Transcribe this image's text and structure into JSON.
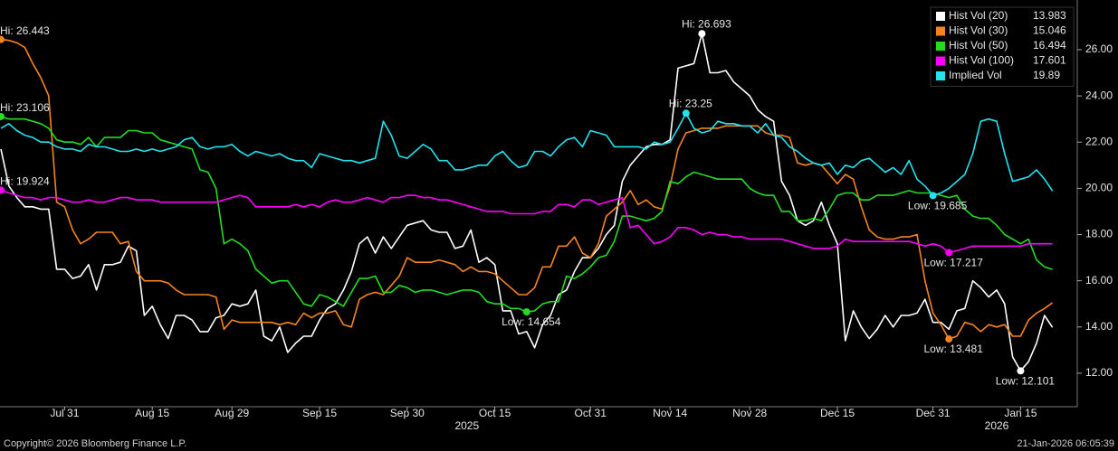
{
  "chart_data": {
    "type": "line",
    "categories": [
      null,
      null,
      null,
      null,
      null,
      null,
      null,
      null,
      "Jul 31",
      null,
      null,
      null,
      null,
      null,
      null,
      null,
      null,
      null,
      null,
      "Aug 15",
      null,
      null,
      null,
      null,
      null,
      null,
      null,
      null,
      null,
      "Aug 29",
      null,
      null,
      null,
      null,
      null,
      null,
      null,
      null,
      null,
      null,
      "Sep 15",
      null,
      null,
      null,
      null,
      null,
      null,
      null,
      null,
      null,
      null,
      "Sep 30",
      null,
      null,
      null,
      null,
      null,
      null,
      null,
      null,
      null,
      null,
      "Oct 15",
      null,
      null,
      null,
      null,
      null,
      null,
      null,
      null,
      null,
      null,
      null,
      "Oct 31",
      null,
      null,
      null,
      null,
      null,
      null,
      null,
      null,
      null,
      "Nov 14",
      null,
      null,
      null,
      null,
      null,
      null,
      null,
      null,
      null,
      "Nov 28",
      null,
      null,
      null,
      null,
      null,
      null,
      null,
      null,
      null,
      null,
      "Dec 15",
      null,
      null,
      null,
      null,
      null,
      null,
      null,
      null,
      null,
      null,
      null,
      "Dec 31",
      null,
      null,
      null,
      null,
      null,
      null,
      null,
      null,
      null,
      null,
      "Jan 15",
      null,
      null,
      null,
      null
    ],
    "year_labels": [
      "2025",
      "2026"
    ],
    "series": [
      {
        "name": "Hist Vol (20)",
        "color": "#ffffff",
        "hi_label": "Hi: 26.693",
        "low_label": "Low: 12.101",
        "values": [
          21.7,
          20.1,
          19.6,
          19.2,
          19.2,
          19.1,
          19.1,
          16.5,
          16.5,
          16.1,
          16.2,
          16.7,
          15.6,
          16.7,
          16.7,
          16.8,
          17.5,
          17.3,
          14.5,
          14.9,
          14.1,
          13.5,
          14.5,
          14.5,
          14.3,
          13.8,
          13.8,
          14.4,
          14.5,
          15.0,
          14.9,
          15.0,
          15.6,
          13.6,
          13.4,
          14.0,
          12.9,
          13.3,
          13.6,
          13.6,
          14.3,
          14.8,
          15.0,
          15.6,
          16.4,
          17.6,
          17.9,
          17.2,
          17.9,
          17.4,
          17.9,
          18.4,
          18.5,
          18.6,
          18.2,
          18.1,
          18.1,
          17.4,
          17.5,
          18.2,
          16.8,
          17.0,
          16.7,
          14.7,
          14.7,
          13.7,
          13.8,
          13.1,
          14.1,
          14.5,
          15.4,
          15.6,
          16.4,
          17.0,
          17.0,
          17.4,
          18.0,
          18.4,
          20.3,
          21.0,
          21.4,
          21.8,
          21.9,
          21.9,
          22.1,
          25.2,
          25.3,
          25.4,
          26.693,
          25.0,
          25.0,
          25.1,
          24.6,
          24.3,
          24.0,
          23.4,
          23.1,
          22.9,
          20.3,
          19.7,
          18.6,
          18.4,
          18.6,
          19.4,
          18.4,
          17.6,
          13.4,
          14.7,
          14.0,
          13.5,
          13.9,
          14.5,
          14.0,
          14.5,
          14.5,
          14.6,
          15.2,
          14.2,
          14.2,
          13.9,
          14.7,
          14.8,
          16.0,
          15.7,
          15.3,
          15.6,
          15.0,
          12.7,
          12.101,
          12.5,
          13.3,
          14.5,
          13.983
        ]
      },
      {
        "name": "Hist Vol (30)",
        "color": "#f5841f",
        "hi_label": "Hi: 26.443",
        "low_label": "Low: 13.481",
        "values": [
          26.443,
          26.4,
          26.3,
          26.1,
          25.4,
          24.8,
          24.0,
          19.4,
          19.2,
          18.2,
          17.6,
          17.8,
          18.1,
          18.1,
          18.1,
          17.6,
          17.7,
          16.4,
          16.0,
          16.0,
          16.0,
          15.9,
          15.6,
          15.4,
          15.4,
          15.4,
          15.4,
          15.3,
          13.9,
          14.3,
          14.2,
          14.2,
          14.2,
          14.2,
          14.2,
          14.1,
          14.2,
          14.1,
          14.6,
          14.4,
          14.6,
          14.6,
          14.7,
          14.1,
          14.0,
          15.2,
          15.4,
          15.5,
          15.4,
          15.8,
          16.2,
          17.0,
          16.8,
          16.8,
          16.8,
          16.9,
          16.8,
          16.7,
          16.4,
          16.6,
          16.4,
          16.4,
          16.3,
          16.0,
          15.7,
          15.4,
          15.4,
          15.7,
          16.6,
          16.6,
          17.5,
          17.5,
          17.9,
          17.2,
          17.0,
          17.6,
          18.8,
          19.1,
          19.4,
          19.9,
          19.3,
          19.5,
          19.2,
          19.1,
          20.1,
          21.7,
          22.4,
          22.5,
          22.6,
          22.6,
          22.6,
          22.7,
          22.7,
          22.7,
          22.7,
          22.7,
          22.4,
          22.3,
          22.3,
          22.2,
          21.1,
          21.0,
          21.1,
          21.0,
          20.6,
          20.2,
          20.6,
          20.4,
          19.2,
          18.2,
          17.9,
          17.8,
          17.8,
          17.9,
          17.9,
          18.0,
          16.0,
          14.6,
          14.1,
          13.481,
          13.6,
          14.2,
          14.1,
          13.8,
          14.1,
          14.0,
          14.1,
          13.6,
          13.6,
          14.3,
          14.6,
          14.8,
          15.046
        ]
      },
      {
        "name": "Hist Vol (50)",
        "color": "#22dd22",
        "hi_label": "Hi: 23.106",
        "low_label": "Low: 14.654",
        "values": [
          23.106,
          23.0,
          23.0,
          23.0,
          22.9,
          22.8,
          22.6,
          22.1,
          22.0,
          22.0,
          21.9,
          22.2,
          21.8,
          22.2,
          22.2,
          22.2,
          22.5,
          22.5,
          22.4,
          22.4,
          22.1,
          22.0,
          21.9,
          21.8,
          21.7,
          20.8,
          20.7,
          20.0,
          17.6,
          17.8,
          17.6,
          17.3,
          16.5,
          16.2,
          15.9,
          16.0,
          16.0,
          15.5,
          15.0,
          14.9,
          15.4,
          15.3,
          15.1,
          14.9,
          15.5,
          16.1,
          16.1,
          16.2,
          15.5,
          15.5,
          15.8,
          15.7,
          15.5,
          15.6,
          15.6,
          15.5,
          15.4,
          15.5,
          15.6,
          15.6,
          15.5,
          15.1,
          15.0,
          15.0,
          14.8,
          14.8,
          14.654,
          14.7,
          15.0,
          15.1,
          15.1,
          16.2,
          16.1,
          16.3,
          16.6,
          17.0,
          17.1,
          17.7,
          18.8,
          18.8,
          18.7,
          18.6,
          18.7,
          19.0,
          20.3,
          20.2,
          20.5,
          20.7,
          20.6,
          20.5,
          20.4,
          20.4,
          20.4,
          20.4,
          20.0,
          19.8,
          19.7,
          19.7,
          19.0,
          19.0,
          18.6,
          18.6,
          18.7,
          18.6,
          19.1,
          19.7,
          19.8,
          19.8,
          19.5,
          19.5,
          19.7,
          19.7,
          19.7,
          19.8,
          19.9,
          19.8,
          19.8,
          19.8,
          19.7,
          19.6,
          19.7,
          19.1,
          18.8,
          18.7,
          18.7,
          18.4,
          18.0,
          17.8,
          17.6,
          17.8,
          16.9,
          16.6,
          16.494
        ]
      },
      {
        "name": "Hist Vol (100)",
        "color": "#ff00ff",
        "hi_label": "Hi: 19.924",
        "low_label": "Low: 17.217",
        "values": [
          19.924,
          19.8,
          19.7,
          19.6,
          19.6,
          19.5,
          19.6,
          19.6,
          19.5,
          19.4,
          19.4,
          19.5,
          19.4,
          19.4,
          19.5,
          19.6,
          19.6,
          19.5,
          19.5,
          19.5,
          19.4,
          19.4,
          19.4,
          19.4,
          19.4,
          19.4,
          19.4,
          19.4,
          19.5,
          19.6,
          19.7,
          19.6,
          19.2,
          19.2,
          19.2,
          19.2,
          19.2,
          19.3,
          19.2,
          19.3,
          19.2,
          19.4,
          19.5,
          19.4,
          19.4,
          19.5,
          19.6,
          19.5,
          19.4,
          19.6,
          19.6,
          19.7,
          19.7,
          19.6,
          19.6,
          19.5,
          19.5,
          19.4,
          19.3,
          19.2,
          19.1,
          19.0,
          19.0,
          19.0,
          18.9,
          18.9,
          18.9,
          18.9,
          19.0,
          19.0,
          19.3,
          19.3,
          19.2,
          19.5,
          19.5,
          19.3,
          19.4,
          19.5,
          19.6,
          18.3,
          18.4,
          18.0,
          17.6,
          17.7,
          17.9,
          18.3,
          18.3,
          18.2,
          18.0,
          18.1,
          18.0,
          18.0,
          17.9,
          17.9,
          17.8,
          17.8,
          17.8,
          17.8,
          17.8,
          17.7,
          17.6,
          17.5,
          17.4,
          17.4,
          17.4,
          17.5,
          17.8,
          17.7,
          17.7,
          17.7,
          17.7,
          17.7,
          17.7,
          17.7,
          17.7,
          17.6,
          17.5,
          17.6,
          17.5,
          17.217,
          17.3,
          17.4,
          17.5,
          17.5,
          17.5,
          17.5,
          17.5,
          17.5,
          17.5,
          17.6,
          17.6,
          17.6,
          17.601
        ]
      },
      {
        "name": "Implied Vol",
        "color": "#22e3ee",
        "hi_label": "Hi: 23.25",
        "low_label": "Low: 19.685",
        "values": [
          22.6,
          22.8,
          22.5,
          22.3,
          22.2,
          22.0,
          22.0,
          21.8,
          21.7,
          21.7,
          21.6,
          21.9,
          21.8,
          21.8,
          21.7,
          21.6,
          21.6,
          21.7,
          21.6,
          21.7,
          21.6,
          21.7,
          21.8,
          22.1,
          22.2,
          21.8,
          21.7,
          21.8,
          21.8,
          21.9,
          21.6,
          21.4,
          21.6,
          21.5,
          21.4,
          21.5,
          21.3,
          21.2,
          21.2,
          20.9,
          21.5,
          21.4,
          21.3,
          21.2,
          21.2,
          21.1,
          21.2,
          21.3,
          22.9,
          22.3,
          21.4,
          21.3,
          21.6,
          21.9,
          21.7,
          21.2,
          21.2,
          20.8,
          20.8,
          20.9,
          21.0,
          21.0,
          21.4,
          21.6,
          21.2,
          20.9,
          21.0,
          21.6,
          21.6,
          21.4,
          21.8,
          22.1,
          22.2,
          21.8,
          22.5,
          22.4,
          22.3,
          21.8,
          21.8,
          21.8,
          21.8,
          21.7,
          22.0,
          21.9,
          22.0,
          22.6,
          23.25,
          22.6,
          22.4,
          22.5,
          22.9,
          22.8,
          22.8,
          22.7,
          22.7,
          22.4,
          22.8,
          22.3,
          22.2,
          21.8,
          21.6,
          21.3,
          21.1,
          21.0,
          21.1,
          20.6,
          21.0,
          20.9,
          21.2,
          21.3,
          21.0,
          20.7,
          20.9,
          20.6,
          21.2,
          20.4,
          20.1,
          19.685,
          19.8,
          20.0,
          20.3,
          20.6,
          21.5,
          22.9,
          23.0,
          22.9,
          21.5,
          20.3,
          20.4,
          20.5,
          20.8,
          20.4,
          19.89
        ]
      }
    ],
    "ylim": [
      10.55,
      28.15
    ],
    "yticks": [
      {
        "value": 12,
        "label": "12.00"
      },
      {
        "value": 14,
        "label": "14.00"
      },
      {
        "value": 16,
        "label": "16.00"
      },
      {
        "value": 18,
        "label": "18.00"
      },
      {
        "value": 20,
        "label": "20.00"
      },
      {
        "value": 22,
        "label": "22.00"
      },
      {
        "value": 24,
        "label": "24.00"
      },
      {
        "value": 26,
        "label": "26.00"
      }
    ],
    "legend": "upper right",
    "background": "#000000"
  },
  "footer": {
    "copyright": "Copyright© 2026 Bloomberg Finance L.P.",
    "timestamp": "21-Jan-2026 06:05:39"
  }
}
